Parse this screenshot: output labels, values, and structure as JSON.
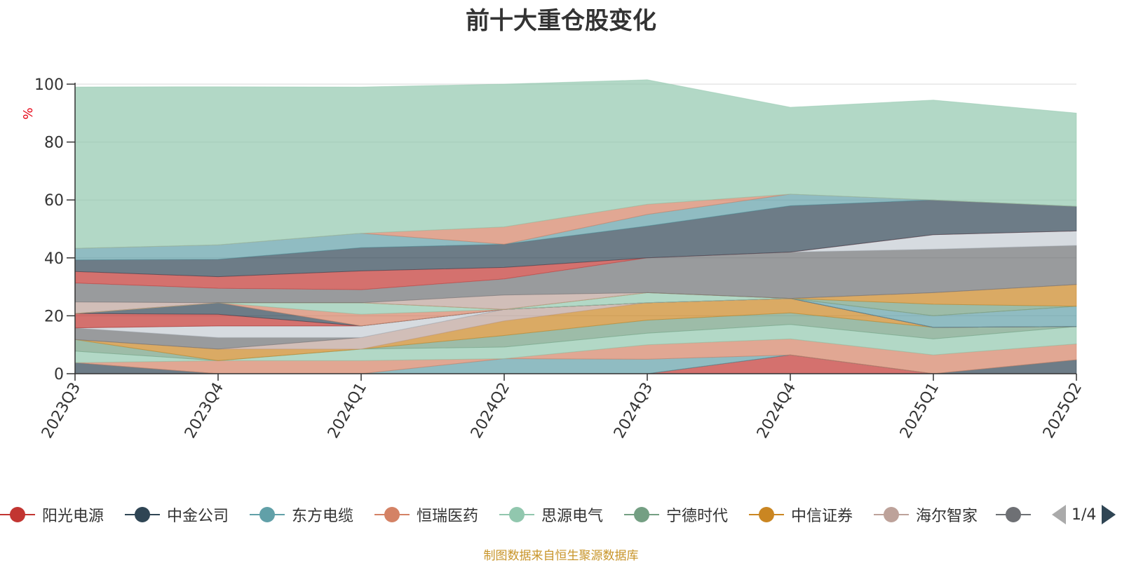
{
  "title": "前十大重仓股变化",
  "footnote": "制图数据来自恒生聚源数据库",
  "legend_nav": {
    "page": "1/4"
  },
  "legend_items": [
    {
      "name": "阳光电源",
      "color": "#c23531"
    },
    {
      "name": "中金公司",
      "color": "#2f4554"
    },
    {
      "name": "东方电缆",
      "color": "#61a0a8"
    },
    {
      "name": "恒瑞医药",
      "color": "#d48265"
    },
    {
      "name": "思源电气",
      "color": "#91c7ae"
    },
    {
      "name": "宁德时代",
      "color": "#749f83"
    },
    {
      "name": "中信证券",
      "color": "#ca8622"
    },
    {
      "name": "海尔智家",
      "color": "#bda29a"
    },
    {
      "name": "",
      "color": "#6e7074"
    }
  ],
  "chart_data": {
    "type": "area",
    "stacked": true,
    "title": "前十大重仓股变化",
    "ylabel": "%",
    "ylim": [
      0,
      100
    ],
    "y_ticks": [
      "0",
      "20",
      "40",
      "60",
      "80",
      "100"
    ],
    "categories": [
      "2023Q3",
      "2023Q4",
      "2024Q1",
      "2024Q2",
      "2024Q3",
      "2024Q4",
      "2025Q1",
      "2025Q2"
    ],
    "series": [
      {
        "color": "#c23531",
        "values": [
          0,
          0,
          0,
          0,
          0,
          6.5,
          0,
          0
        ]
      },
      {
        "color": "#2f4554",
        "values": [
          3.8,
          0,
          0,
          0,
          0,
          0,
          0,
          4.8
        ]
      },
      {
        "color": "#61a0a8",
        "values": [
          0,
          0,
          0,
          5.2,
          5,
          0,
          0,
          0
        ]
      },
      {
        "color": "#d48265",
        "values": [
          0,
          4.5,
          4.5,
          0,
          5,
          5.5,
          6.5,
          5.5
        ]
      },
      {
        "color": "#91c7ae",
        "values": [
          4,
          0,
          4,
          4,
          4,
          5,
          5.5,
          6
        ]
      },
      {
        "color": "#749f83",
        "values": [
          4,
          0,
          0,
          4,
          4.5,
          4,
          4,
          0
        ]
      },
      {
        "color": "#ca8622",
        "values": [
          0,
          4,
          0,
          5,
          6,
          5,
          0,
          0
        ]
      },
      {
        "color": "#bda29a",
        "values": [
          0,
          0,
          4,
          4,
          0,
          0,
          0,
          0
        ]
      },
      {
        "color": "#6e7074",
        "values": [
          4,
          4,
          0,
          0,
          0,
          0,
          0,
          0
        ]
      },
      {
        "color": "#c4ccd3",
        "values": [
          0,
          4,
          4,
          0,
          0,
          0,
          0,
          0
        ]
      },
      {
        "color": "#6e7074",
        "values": [
          0,
          0,
          0,
          0,
          0,
          0,
          0,
          0
        ]
      },
      {
        "color": "#c23531",
        "values": [
          5,
          4,
          0,
          0,
          0,
          0,
          0,
          0
        ]
      },
      {
        "color": "#2f4554",
        "values": [
          0,
          4,
          0,
          0,
          0,
          0,
          0,
          0
        ]
      },
      {
        "color": "#61a0a8",
        "values": [
          0,
          0,
          0,
          0,
          0,
          0,
          4,
          7
        ]
      },
      {
        "color": "#d48265",
        "values": [
          0,
          0,
          4,
          0,
          0,
          0,
          0,
          0
        ]
      },
      {
        "color": "#91c7ae",
        "values": [
          0,
          0,
          4,
          0,
          3.5,
          0,
          0,
          0
        ]
      },
      {
        "color": "#749f83",
        "values": [
          0,
          0,
          0,
          0,
          0,
          0,
          4,
          0
        ]
      },
      {
        "color": "#ca8622",
        "values": [
          0,
          0,
          0,
          0,
          0,
          0,
          4,
          7.5
        ]
      },
      {
        "color": "#bda29a",
        "values": [
          4,
          0,
          0,
          5,
          0,
          0,
          0,
          0
        ]
      },
      {
        "color": "#6e7074",
        "values": [
          6.5,
          5,
          4.5,
          5.5,
          12,
          16,
          15,
          13.5
        ]
      },
      {
        "color": "#c4ccd3",
        "values": [
          0,
          0,
          0,
          0,
          0,
          0,
          5,
          5
        ]
      },
      {
        "color": "#c23531",
        "values": [
          4,
          4,
          6.5,
          4,
          0,
          0,
          0,
          0
        ]
      },
      {
        "color": "#2f4554",
        "values": [
          4,
          6,
          8,
          8,
          11,
          16,
          12,
          8.5
        ]
      },
      {
        "color": "#61a0a8",
        "values": [
          4,
          5,
          5,
          0,
          4,
          4,
          0,
          0
        ]
      },
      {
        "color": "#d48265",
        "values": [
          0,
          0,
          0,
          6,
          3.5,
          0,
          0,
          0
        ]
      },
      {
        "color": "#91c7ae",
        "values": [
          55.7,
          54.6,
          50.5,
          49.3,
          43,
          30,
          34.5,
          32.2
        ]
      }
    ]
  }
}
